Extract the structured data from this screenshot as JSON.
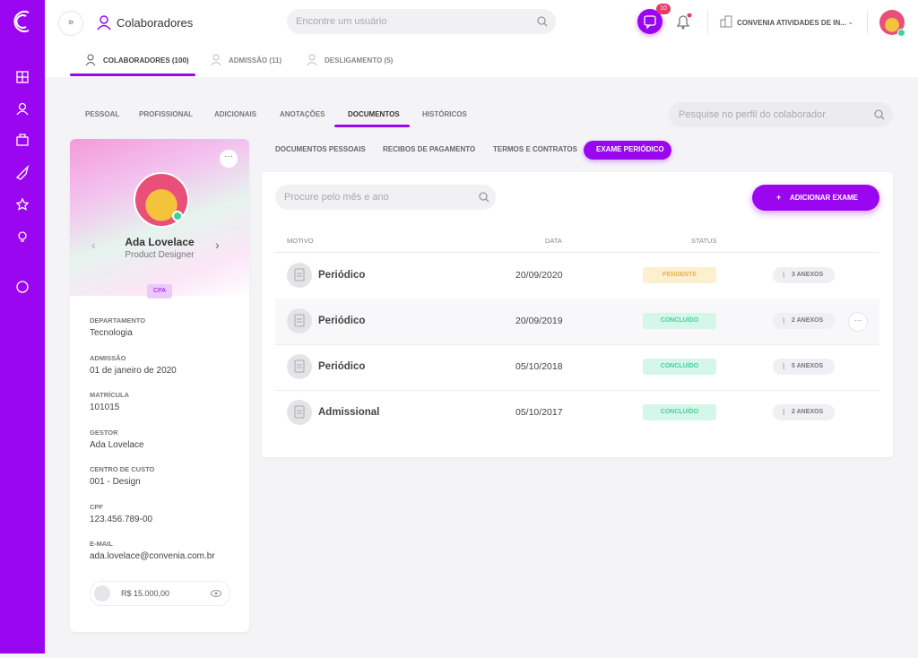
{
  "header": {
    "title": "Colaboradores",
    "search_placeholder": "Encontre um usuário",
    "notifications": "10",
    "company": "CONVENIA ATIVIDADES DE IN..."
  },
  "main_tabs": [
    "COLABORADORES (100)",
    "ADMISSÃO (11)",
    "DESLIGAMENTO (5)"
  ],
  "profile_tabs": [
    "PESSOAL",
    "PROFISSIONAL",
    "ADICIONAIS",
    "ANOTAÇÕES",
    "DOCUMENTOS",
    "HISTÓRICOS"
  ],
  "profile_search": "Pesquise no perfil do colaborador",
  "document_tabs": [
    "DOCUMENTOS PESSOAIS",
    "RECIBOS DE PAGAMENTO",
    "TERMOS E CONTRATOS",
    "EXAME PERIÓDICO"
  ],
  "profile": {
    "name": "Ada Lovelace",
    "role": "Product Designer",
    "tag": "CPA",
    "fields": [
      {
        "label": "DEPARTAMENTO",
        "value": "Tecnologia"
      },
      {
        "label": "ADMISSÃO",
        "value": "01 de janeiro de 2020"
      },
      {
        "label": "MATRÍCULA",
        "value": "101015"
      },
      {
        "label": "GESTOR",
        "value": "Ada Lovelace"
      },
      {
        "label": "CENTRO DE CUSTO",
        "value": "001 - Design"
      },
      {
        "label": "CPF",
        "value": "123.456.789-00"
      },
      {
        "label": "E-MAIL",
        "value": "ada.lovelace@convenia.com.br"
      }
    ],
    "salary": "R$ 15.000,00"
  },
  "exams": {
    "search_placeholder": "Procure pelo mês e ano",
    "add_button": "ADICIONAR EXAME",
    "columns": [
      "MOTIVO",
      "DATA",
      "STATUS"
    ],
    "rows": [
      {
        "reason": "Periódico",
        "date": "20/09/2020",
        "status": "PENDENTE",
        "attachments": "3 ANEXOS"
      },
      {
        "reason": "Periódico",
        "date": "20/09/2019",
        "status": "CONCLUÍDO",
        "attachments": "2 ANEXOS"
      },
      {
        "reason": "Periódico",
        "date": "05/10/2018",
        "status": "CONCLUÍDO",
        "attachments": "5 ANEXOS"
      },
      {
        "reason": "Admissional",
        "date": "05/10/2017",
        "status": "CONCLUÍDO",
        "attachments": "2 ANEXOS"
      }
    ]
  }
}
